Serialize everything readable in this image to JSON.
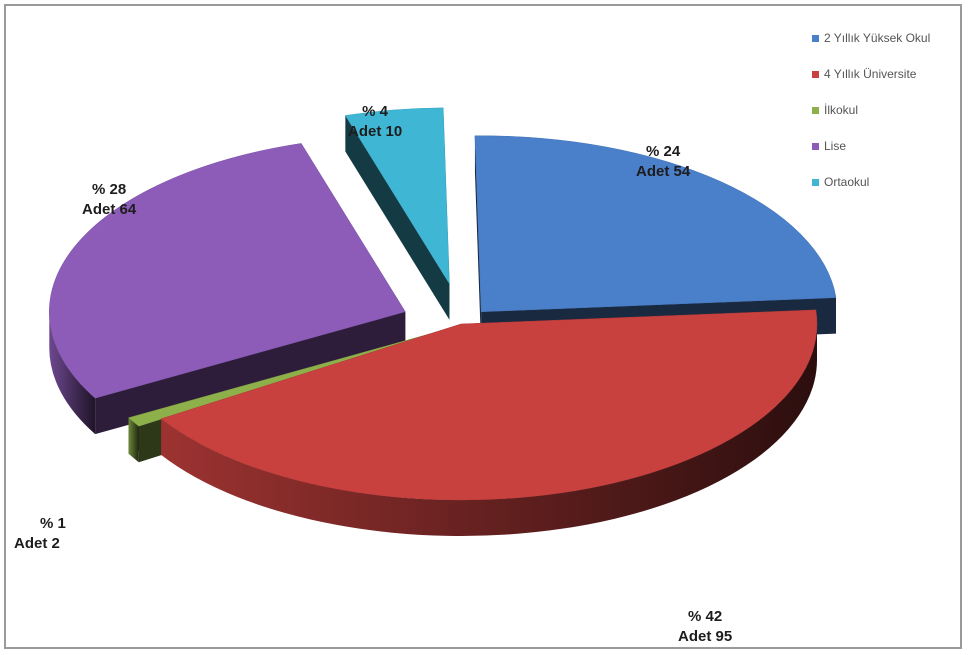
{
  "chart_data": {
    "type": "pie",
    "title": "",
    "legend_position": "right",
    "series": [
      {
        "name": "2 Yıllık Yüksek Okul",
        "percent_label": "% 24",
        "count_label": "Adet 54",
        "value": 54,
        "color": "#4a7fc9"
      },
      {
        "name": "4 Yıllık Üniversite",
        "percent_label": "% 42",
        "count_label": "Adet 95",
        "value": 95,
        "color": "#c8413f"
      },
      {
        "name": "İlkokul",
        "percent_label": "% 1",
        "count_label": "Adet 2",
        "value": 2,
        "color": "#8db04a"
      },
      {
        "name": "Lise",
        "percent_label": "% 28",
        "count_label": "Adet 64",
        "value": 64,
        "color": "#8c5cb8"
      },
      {
        "name": "Ortaokul",
        "percent_label": "% 4",
        "count_label": "Adet 10",
        "value": 10,
        "color": "#3fb6d4"
      }
    ]
  }
}
